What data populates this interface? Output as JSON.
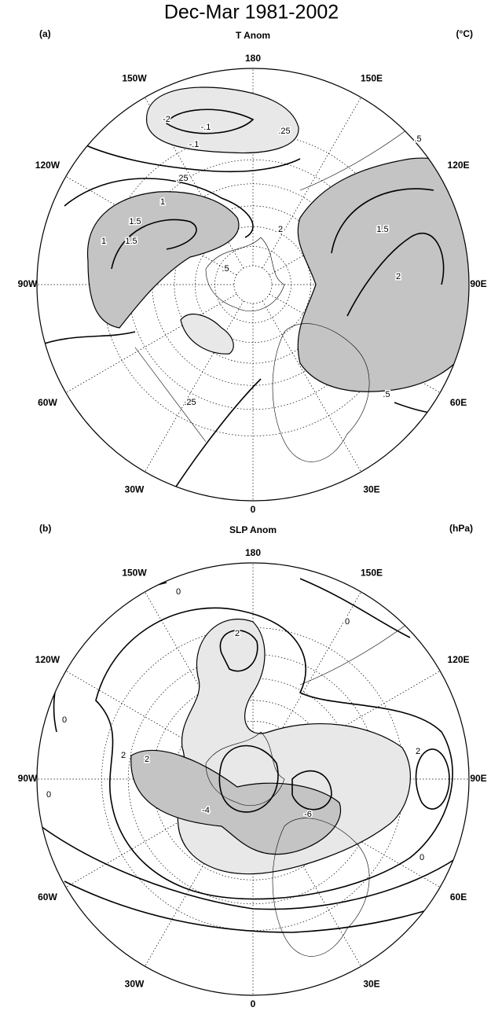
{
  "title": "Dec-Mar 1981-2002",
  "longitudes": [
    "180",
    "150E",
    "120E",
    "90E",
    "60E",
    "30E",
    "0",
    "30W",
    "60W",
    "90W",
    "120W",
    "150W"
  ],
  "panels": [
    {
      "label": "(a)",
      "title": "T Anom",
      "units": "(°C)",
      "contour_labels": [
        ".5",
        "1",
        "1.5",
        "2",
        ".25",
        "-.1",
        "-.1",
        "-2",
        "1",
        "1.5",
        "2",
        ".5",
        ".25",
        ".25",
        ".5",
        "1.5"
      ]
    },
    {
      "label": "(b)",
      "title": "SLP Anom",
      "units": "(hPa)",
      "contour_labels": [
        "0",
        "2",
        "0",
        "0",
        "2",
        "2",
        "0",
        "-4",
        "-6",
        "0",
        "2"
      ]
    }
  ]
}
